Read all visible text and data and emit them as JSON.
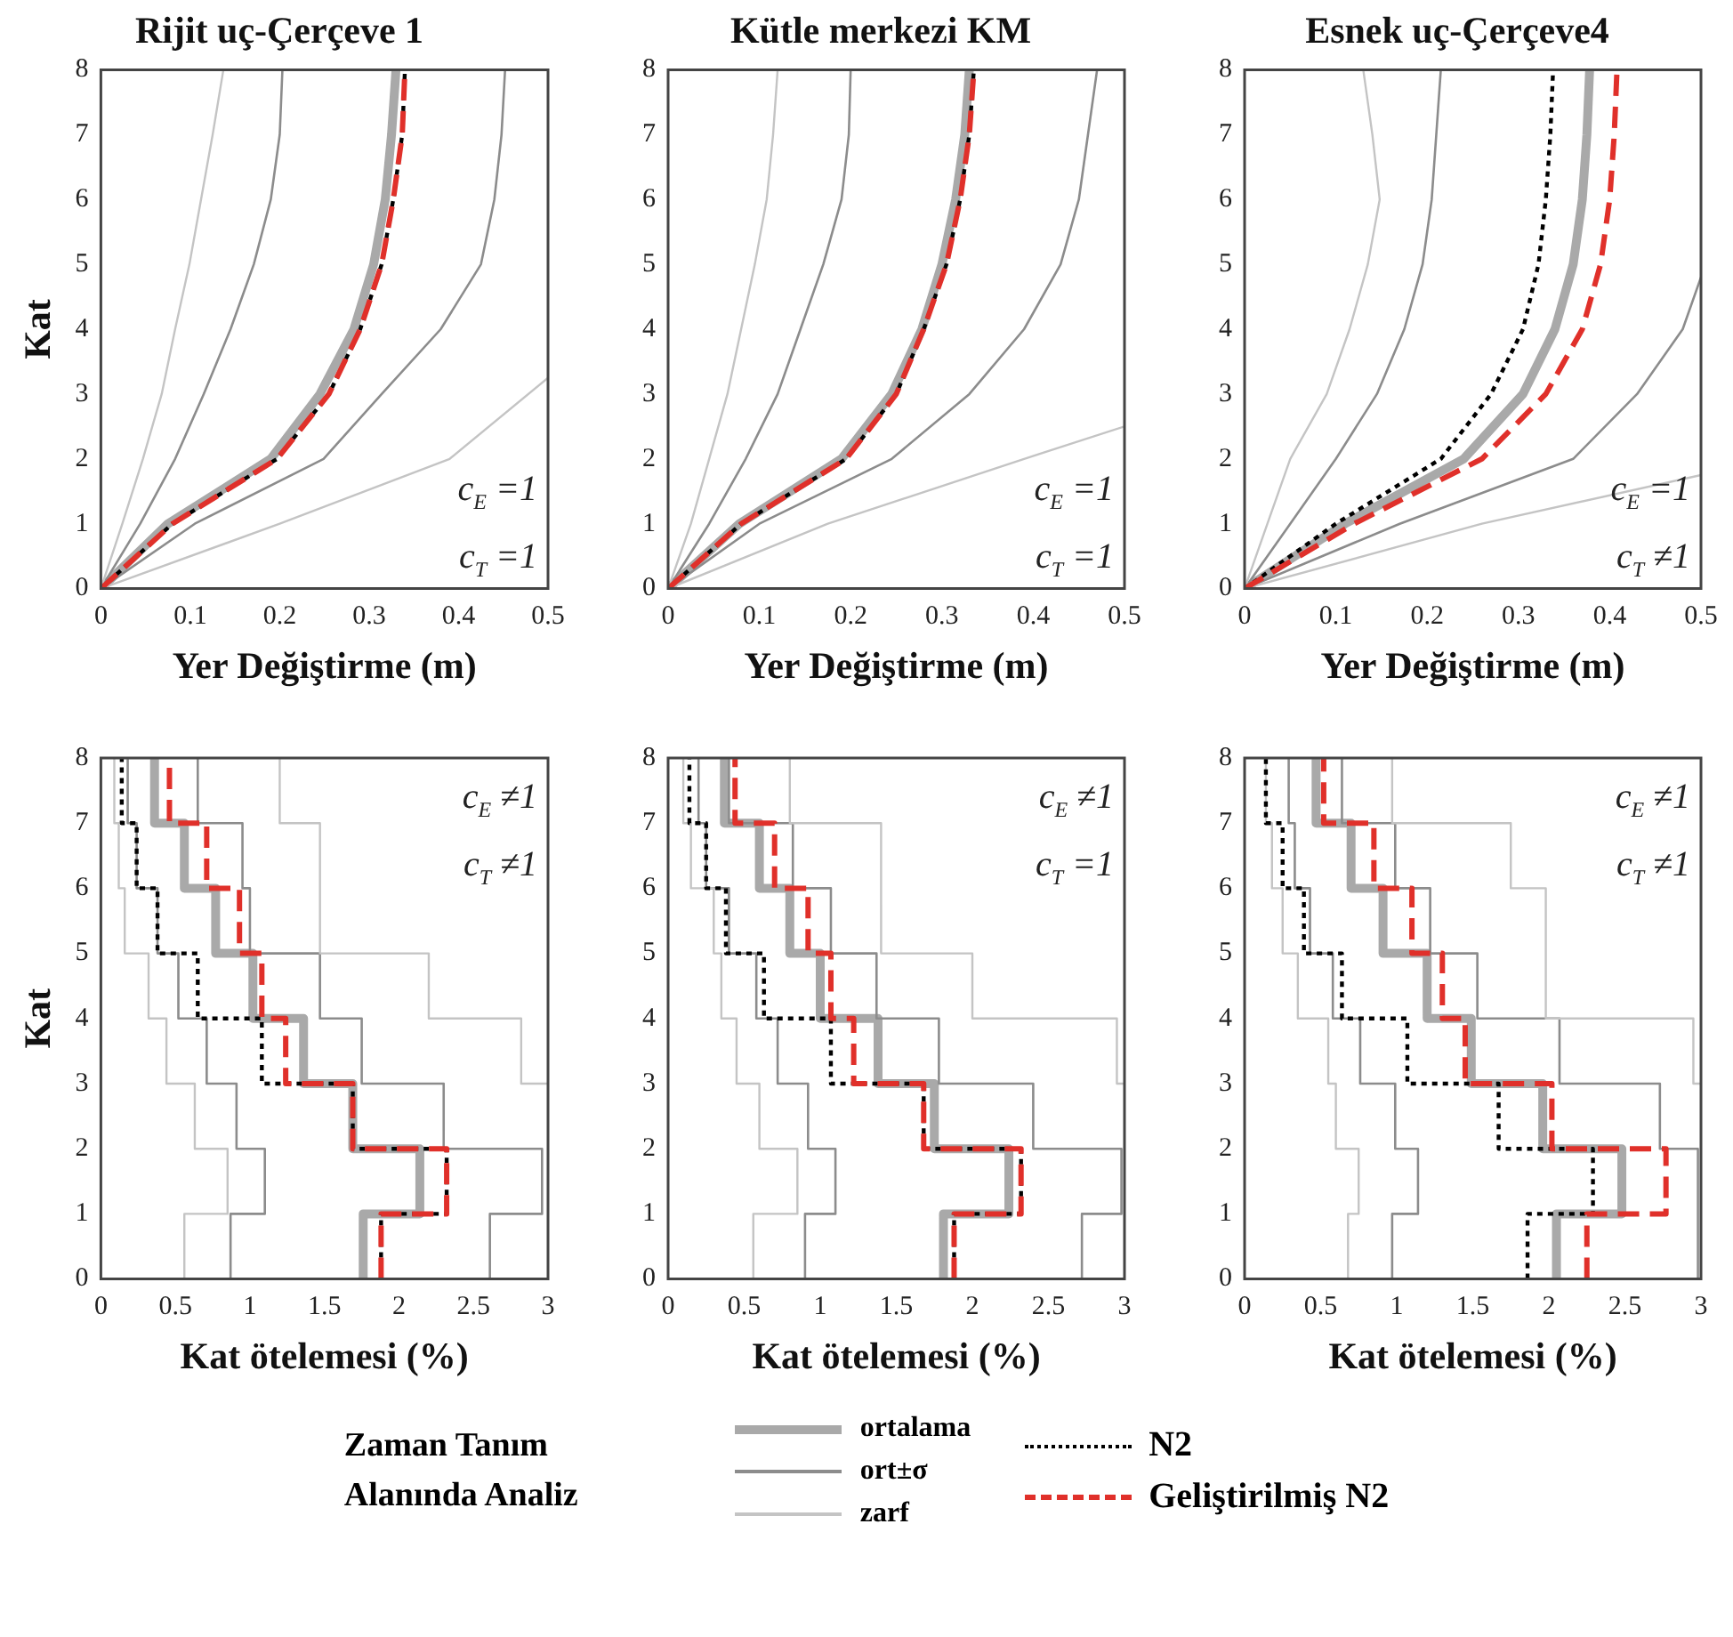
{
  "chart_data": [
    {
      "type": "line",
      "title": "Rijit uç-Çerçeve 1",
      "xlabel": "Yer Değiştirme (m)",
      "ylabel": "Kat",
      "xlim": [
        0,
        0.5
      ],
      "ylim": [
        0,
        8
      ],
      "xticks": [
        0,
        0.1,
        0.2,
        0.3,
        0.4,
        0.5
      ],
      "yticks": [
        0,
        1,
        2,
        3,
        4,
        5,
        6,
        7,
        8
      ],
      "annotations": [
        "c$_{E}$ =1",
        "c$_{T}$ =1"
      ],
      "series": [
        {
          "color": "#a9a9a9",
          "x": [
            0,
            0.075,
            0.19,
            0.245,
            0.283,
            0.305,
            0.318,
            0.325,
            0.33
          ],
          "values": [
            0,
            1,
            2,
            3,
            4,
            5,
            6,
            7,
            8
          ]
        },
        {
          "color": "#8c8c8c",
          "x": [
            0,
            0.044,
            0.083,
            0.115,
            0.145,
            0.171,
            0.19,
            0.2,
            0.203
          ],
          "values": [
            0,
            1,
            2,
            3,
            4,
            5,
            6,
            7,
            8
          ]
        },
        {
          "color": "#8c8c8c",
          "x": [
            0,
            0.105,
            0.249,
            0.314,
            0.38,
            0.425,
            0.44,
            0.448,
            0.452
          ],
          "values": [
            0,
            1,
            2,
            3,
            4,
            5,
            6,
            7,
            8
          ]
        },
        {
          "color": "#c4c4c4",
          "x": [
            0,
            0.024,
            0.047,
            0.068,
            0.083,
            0.099,
            0.112,
            0.125,
            0.137
          ],
          "values": [
            0,
            1,
            2,
            3,
            4,
            5,
            6,
            7,
            8
          ]
        },
        {
          "color": "#c4c4c4",
          "x": [
            0,
            0.2,
            0.39,
            0.5
          ],
          "values": [
            0,
            1,
            2,
            3.25
          ]
        },
        {
          "color": "#000000",
          "line_style": "dotted",
          "x": [
            0,
            0.08,
            0.197,
            0.255,
            0.29,
            0.314,
            0.327,
            0.337,
            0.34
          ],
          "values": [
            0,
            1,
            2,
            3,
            4,
            5,
            6,
            7,
            8
          ]
        },
        {
          "color": "#e0302a",
          "line_style": "dashed",
          "x": [
            0,
            0.08,
            0.197,
            0.255,
            0.29,
            0.314,
            0.327,
            0.337,
            0.34
          ],
          "values": [
            0,
            1,
            2,
            3,
            4,
            5,
            6,
            7,
            8
          ]
        }
      ]
    },
    {
      "type": "line",
      "title": "Kütle merkezi KM",
      "xlabel": "Yer Değiştirme (m)",
      "xlim": [
        0,
        0.5
      ],
      "ylim": [
        0,
        8
      ],
      "xticks": [
        0,
        0.1,
        0.2,
        0.3,
        0.4,
        0.5
      ],
      "yticks": [
        0,
        1,
        2,
        3,
        4,
        5,
        6,
        7,
        8
      ],
      "annotations": [
        "c$_{E}$ =1",
        "c$_{T}$ =1"
      ],
      "series": [
        {
          "color": "#a9a9a9",
          "x": [
            0,
            0.078,
            0.19,
            0.245,
            0.278,
            0.3,
            0.315,
            0.325,
            0.33
          ],
          "values": [
            0,
            1,
            2,
            3,
            4,
            5,
            6,
            7,
            8
          ]
        },
        {
          "color": "#8c8c8c",
          "x": [
            0,
            0.045,
            0.085,
            0.12,
            0.145,
            0.17,
            0.19,
            0.198,
            0.2
          ],
          "values": [
            0,
            1,
            2,
            3,
            4,
            5,
            6,
            7,
            8
          ]
        },
        {
          "color": "#8c8c8c",
          "x": [
            0,
            0.1,
            0.245,
            0.33,
            0.39,
            0.43,
            0.45,
            0.46,
            0.47
          ],
          "values": [
            0,
            1,
            2,
            3,
            4,
            5,
            6,
            7,
            8
          ]
        },
        {
          "color": "#c4c4c4",
          "x": [
            0,
            0.025,
            0.045,
            0.065,
            0.08,
            0.095,
            0.108,
            0.115,
            0.12
          ],
          "values": [
            0,
            1,
            2,
            3,
            4,
            5,
            6,
            7,
            8
          ]
        },
        {
          "color": "#c4c4c4",
          "x": [
            0,
            0.175,
            0.39,
            0.5
          ],
          "values": [
            0,
            1,
            2,
            2.5
          ]
        },
        {
          "color": "#000000",
          "line_style": "dotted",
          "x": [
            0,
            0.08,
            0.195,
            0.25,
            0.28,
            0.305,
            0.32,
            0.33,
            0.335
          ],
          "values": [
            0,
            1,
            2,
            3,
            4,
            5,
            6,
            7,
            8
          ]
        },
        {
          "color": "#e0302a",
          "line_style": "dashed",
          "x": [
            0,
            0.08,
            0.195,
            0.25,
            0.28,
            0.305,
            0.32,
            0.33,
            0.335
          ],
          "values": [
            0,
            1,
            2,
            3,
            4,
            5,
            6,
            7,
            8
          ]
        }
      ]
    },
    {
      "type": "line",
      "title": "Esnek uç-Çerçeve4",
      "xlabel": "Yer Değiştirme (m)",
      "xlim": [
        0,
        0.5
      ],
      "ylim": [
        0,
        8
      ],
      "xticks": [
        0,
        0.1,
        0.2,
        0.3,
        0.4,
        0.5
      ],
      "yticks": [
        0,
        1,
        2,
        3,
        4,
        5,
        6,
        7,
        8
      ],
      "annotations": [
        "c$_{E}$ =1",
        "c$_{T}$ ≠1"
      ],
      "series": [
        {
          "color": "#a9a9a9",
          "x": [
            0,
            0.11,
            0.24,
            0.305,
            0.34,
            0.36,
            0.37,
            0.375,
            0.378
          ],
          "values": [
            0,
            1,
            2,
            3,
            4,
            5,
            6,
            7,
            8
          ]
        },
        {
          "color": "#8c8c8c",
          "x": [
            0,
            0.05,
            0.1,
            0.145,
            0.175,
            0.195,
            0.205,
            0.21,
            0.215
          ],
          "values": [
            0,
            1,
            2,
            3,
            4,
            5,
            6,
            7,
            8
          ]
        },
        {
          "color": "#8c8c8c",
          "x": [
            0,
            0.17,
            0.36,
            0.43,
            0.48,
            0.5
          ],
          "values": [
            0,
            1,
            2,
            3,
            4,
            4.8
          ]
        },
        {
          "color": "#c4c4c4",
          "x": [
            0,
            0.025,
            0.05,
            0.09,
            0.115,
            0.135,
            0.148,
            0.14,
            0.13
          ],
          "values": [
            0,
            1,
            2,
            3,
            4,
            5,
            6,
            7,
            8
          ]
        },
        {
          "color": "#c4c4c4",
          "x": [
            0,
            0.26,
            0.5
          ],
          "values": [
            0,
            1,
            1.75
          ]
        },
        {
          "color": "#000000",
          "line_style": "dotted",
          "x": [
            0,
            0.1,
            0.215,
            0.27,
            0.305,
            0.322,
            0.33,
            0.335,
            0.338
          ],
          "values": [
            0,
            1,
            2,
            3,
            4,
            5,
            6,
            7,
            8
          ]
        },
        {
          "color": "#e0302a",
          "line_style": "dashed",
          "x": [
            0,
            0.12,
            0.26,
            0.33,
            0.37,
            0.39,
            0.4,
            0.405,
            0.408
          ],
          "values": [
            0,
            1,
            2,
            3,
            4,
            5,
            6,
            7,
            8
          ]
        }
      ]
    },
    {
      "type": "line",
      "xlabel": "Kat ötelemesi (%)",
      "ylabel": "Kat",
      "xlim": [
        0,
        3
      ],
      "ylim": [
        0,
        8
      ],
      "xticks": [
        0,
        0.5,
        1,
        1.5,
        2,
        2.5,
        3
      ],
      "yticks": [
        0,
        1,
        2,
        3,
        4,
        5,
        6,
        7,
        8
      ],
      "annotations": [
        "c$_{E}$ ≠1",
        "c$_{T}$ ≠1"
      ],
      "series": [
        {
          "color": "#a9a9a9",
          "x": [
            1.76,
            1.76,
            2.14,
            2.14,
            1.69,
            1.69,
            1.36,
            1.36,
            1.02,
            1.02,
            0.77,
            0.77,
            0.56,
            0.56,
            0.36,
            0.36
          ],
          "values": [
            0,
            1,
            1,
            2,
            2,
            3,
            3,
            4,
            4,
            5,
            5,
            6,
            6,
            7,
            7,
            8
          ]
        },
        {
          "color": "#8c8c8c",
          "x": [
            0.87,
            0.87,
            1.1,
            1.1,
            0.91,
            0.91,
            0.71,
            0.71,
            0.52,
            0.52,
            0.38,
            0.38,
            0.24,
            0.24,
            0.18,
            0.18
          ],
          "values": [
            0,
            1,
            1,
            2,
            2,
            3,
            3,
            4,
            4,
            5,
            5,
            6,
            6,
            7,
            7,
            8
          ]
        },
        {
          "color": "#8c8c8c",
          "x": [
            2.61,
            2.61,
            2.96,
            2.96,
            2.3,
            2.3,
            1.75,
            1.75,
            1.47,
            1.47,
            1.0,
            1.0,
            0.95,
            0.95,
            0.65,
            0.65
          ],
          "values": [
            0,
            1,
            1,
            2,
            2,
            3,
            3,
            4,
            4,
            5,
            5,
            6,
            6,
            7,
            7,
            8
          ]
        },
        {
          "color": "#c4c4c4",
          "x": [
            0.56,
            0.56,
            0.85,
            0.85,
            0.63,
            0.63,
            0.44,
            0.44,
            0.32,
            0.32,
            0.16,
            0.16,
            0.12,
            0.12,
            0.09,
            0.09
          ],
          "values": [
            0,
            1,
            1,
            2,
            2,
            3,
            3,
            4,
            4,
            5,
            5,
            6,
            6,
            7,
            7,
            8
          ]
        },
        {
          "color": "#c4c4c4",
          "x": [
            3,
            2.82,
            2.82,
            2.2,
            2.2,
            1.47,
            1.47,
            1.2,
            1.2
          ],
          "values": [
            3,
            3,
            4,
            4,
            5,
            5,
            7,
            7,
            8
          ]
        },
        {
          "color": "#000000",
          "line_style": "dotted",
          "x": [
            1.88,
            1.88,
            2.32,
            2.32,
            1.69,
            1.69,
            1.08,
            1.08,
            0.65,
            0.65,
            0.38,
            0.38,
            0.24,
            0.24,
            0.14,
            0.14
          ],
          "values": [
            0,
            1,
            1,
            2,
            2,
            3,
            3,
            4,
            4,
            5,
            5,
            6,
            6,
            7,
            7,
            8
          ]
        },
        {
          "color": "#e0302a",
          "line_style": "dashed",
          "x": [
            1.88,
            1.88,
            2.32,
            2.32,
            1.69,
            1.69,
            1.24,
            1.24,
            1.08,
            1.08,
            0.93,
            0.93,
            0.71,
            0.71,
            0.46,
            0.46
          ],
          "values": [
            0,
            1,
            1,
            2,
            2,
            3,
            3,
            4,
            4,
            5,
            5,
            6,
            6,
            7,
            7,
            8
          ]
        }
      ]
    },
    {
      "type": "line",
      "xlabel": "Kat ötelemesi (%)",
      "xlim": [
        0,
        3
      ],
      "ylim": [
        0,
        8
      ],
      "xticks": [
        0,
        0.5,
        1,
        1.5,
        2,
        2.5,
        3
      ],
      "yticks": [
        0,
        1,
        2,
        3,
        4,
        5,
        6,
        7,
        8
      ],
      "annotations": [
        "c$_{E}$ ≠1",
        "c$_{T}$ =1"
      ],
      "legend": "bottom",
      "legend_title": "Zaman Tanım Alanında Analiz",
      "series": [
        {
          "name": "ortalama",
          "color": "#a9a9a9",
          "x": [
            1.81,
            1.81,
            2.24,
            2.24,
            1.75,
            1.75,
            1.38,
            1.38,
            1.0,
            1.0,
            0.8,
            0.8,
            0.6,
            0.6,
            0.37,
            0.37
          ],
          "values": [
            0,
            1,
            1,
            2,
            2,
            3,
            3,
            4,
            4,
            5,
            5,
            6,
            6,
            7,
            7,
            8
          ]
        },
        {
          "name": "ort±σ",
          "color": "#8c8c8c",
          "x": [
            0.9,
            0.9,
            1.1,
            1.1,
            0.92,
            0.92,
            0.72,
            0.72,
            0.58,
            0.58,
            0.4,
            0.4,
            0.25,
            0.25,
            0.2,
            0.2
          ],
          "values": [
            0,
            1,
            1,
            2,
            2,
            3,
            3,
            4,
            4,
            5,
            5,
            6,
            6,
            7,
            7,
            8
          ]
        },
        {
          "color": "#8c8c8c",
          "x": [
            2.72,
            2.72,
            2.98,
            2.98,
            2.4,
            2.4,
            1.78,
            1.78,
            1.37,
            1.37,
            1.07,
            1.07,
            0.82,
            0.82,
            0.4,
            0.4
          ],
          "values": [
            0,
            1,
            1,
            2,
            2,
            3,
            3,
            4,
            4,
            5,
            5,
            6,
            6,
            7,
            7,
            8
          ]
        },
        {
          "name": "zarf",
          "color": "#c4c4c4",
          "x": [
            0.56,
            0.56,
            0.85,
            0.85,
            0.6,
            0.6,
            0.45,
            0.45,
            0.35,
            0.35,
            0.3,
            0.3,
            0.15,
            0.15,
            0.1,
            0.1
          ],
          "values": [
            0,
            1,
            1,
            2,
            2,
            3,
            3,
            4,
            4,
            5,
            5,
            6,
            6,
            7,
            7,
            8
          ]
        },
        {
          "color": "#c4c4c4",
          "x": [
            3,
            2.95,
            2.95,
            2.0,
            2.0,
            1.4,
            1.4,
            0.8,
            0.8
          ],
          "values": [
            3,
            3,
            4,
            4,
            5,
            5,
            7,
            7,
            8
          ]
        },
        {
          "name": "N2",
          "color": "#000000",
          "line_style": "dotted",
          "x": [
            1.88,
            1.88,
            2.32,
            2.32,
            1.68,
            1.68,
            1.07,
            1.07,
            0.63,
            0.63,
            0.38,
            0.38,
            0.25,
            0.25,
            0.14,
            0.14
          ],
          "values": [
            0,
            1,
            1,
            2,
            2,
            3,
            3,
            4,
            4,
            5,
            5,
            6,
            6,
            7,
            7,
            8
          ]
        },
        {
          "name": "Geliştirilmiş N2",
          "color": "#e0302a",
          "line_style": "dashed",
          "x": [
            1.88,
            1.88,
            2.32,
            2.32,
            1.68,
            1.68,
            1.22,
            1.22,
            1.07,
            1.07,
            0.92,
            0.92,
            0.7,
            0.7,
            0.44,
            0.44
          ],
          "values": [
            0,
            1,
            1,
            2,
            2,
            3,
            3,
            4,
            4,
            5,
            5,
            6,
            6,
            7,
            7,
            8
          ]
        }
      ]
    },
    {
      "type": "line",
      "xlabel": "Kat ötelemesi (%)",
      "xlim": [
        0,
        3
      ],
      "ylim": [
        0,
        8
      ],
      "xticks": [
        0,
        0.5,
        1,
        1.5,
        2,
        2.5,
        3
      ],
      "yticks": [
        0,
        1,
        2,
        3,
        4,
        5,
        6,
        7,
        8
      ],
      "annotations": [
        "c$_{E}$ ≠1",
        "c$_{T}$ ≠1"
      ],
      "series": [
        {
          "color": "#a9a9a9",
          "x": [
            2.05,
            2.05,
            2.48,
            2.48,
            1.96,
            1.96,
            1.49,
            1.49,
            1.2,
            1.2,
            0.91,
            0.91,
            0.7,
            0.7,
            0.47,
            0.47
          ],
          "values": [
            0,
            1,
            1,
            2,
            2,
            3,
            3,
            4,
            4,
            5,
            5,
            6,
            6,
            7,
            7,
            8
          ]
        },
        {
          "color": "#8c8c8c",
          "x": [
            0.97,
            0.97,
            1.14,
            1.14,
            0.99,
            0.99,
            0.76,
            0.76,
            0.58,
            0.58,
            0.43,
            0.43,
            0.33,
            0.33,
            0.29,
            0.29
          ],
          "values": [
            0,
            1,
            1,
            2,
            2,
            3,
            3,
            4,
            4,
            5,
            5,
            6,
            6,
            7,
            7,
            8
          ]
        },
        {
          "color": "#8c8c8c",
          "x": [
            2.98,
            2.98,
            2.73,
            2.73,
            2.07,
            2.07,
            1.53,
            1.53,
            1.22,
            1.22,
            0.99,
            0.99,
            0.64,
            0.64
          ],
          "values": [
            0,
            2,
            2,
            3,
            3,
            4,
            4,
            5,
            5,
            6,
            6,
            7,
            7,
            8
          ]
        },
        {
          "color": "#c4c4c4",
          "x": [
            0.68,
            0.68,
            0.75,
            0.75,
            0.6,
            0.6,
            0.55,
            0.55,
            0.35,
            0.35,
            0.25,
            0.25,
            0.18,
            0.18,
            0.14,
            0.14
          ],
          "values": [
            0,
            1,
            1,
            2,
            2,
            3,
            3,
            4,
            4,
            5,
            5,
            6,
            6,
            7,
            7,
            8
          ]
        },
        {
          "color": "#c4c4c4",
          "x": [
            3,
            2.95,
            2.95,
            1.98,
            1.98,
            1.75,
            1.75,
            0.97,
            0.97
          ],
          "values": [
            3,
            3,
            4,
            4,
            6,
            6,
            7,
            7,
            8
          ]
        },
        {
          "color": "#000000",
          "line_style": "dotted",
          "x": [
            1.86,
            1.86,
            2.29,
            2.29,
            1.67,
            1.67,
            1.07,
            1.07,
            0.64,
            0.64,
            0.39,
            0.39,
            0.25,
            0.25,
            0.14,
            0.14
          ],
          "values": [
            0,
            1,
            1,
            2,
            2,
            3,
            3,
            4,
            4,
            5,
            5,
            6,
            6,
            7,
            7,
            8
          ]
        },
        {
          "color": "#e0302a",
          "line_style": "dashed",
          "x": [
            2.25,
            2.25,
            2.77,
            2.77,
            2.02,
            2.02,
            1.45,
            1.45,
            1.3,
            1.3,
            1.1,
            1.1,
            0.85,
            0.85,
            0.52,
            0.52
          ],
          "values": [
            0,
            1,
            1,
            2,
            2,
            3,
            3,
            4,
            4,
            5,
            5,
            6,
            6,
            7,
            7,
            8
          ]
        }
      ]
    }
  ]
}
